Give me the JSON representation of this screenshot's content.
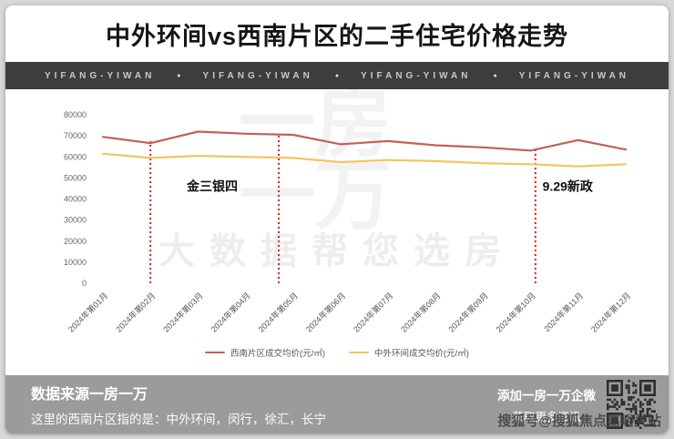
{
  "page": {
    "title": "中外环间vs西南片区的二手住宅价格走势"
  },
  "banner": {
    "items": [
      "YIFANG-YIWAN",
      "YIFANG-YIWAN",
      "YIFANG-YIWAN",
      "YIFANG-YIWAN"
    ],
    "separator": "●"
  },
  "chart_data": {
    "type": "line",
    "title": "中外环间vs西南片区的二手住宅价格走势",
    "categories": [
      "2024年第01月",
      "2024年第02月",
      "2024年第03月",
      "2024年第04月",
      "2024年第05月",
      "2024年第06月",
      "2024年第07月",
      "2024年第08月",
      "2024年第09月",
      "2024年第10月",
      "2024年第11月",
      "2024年第12月"
    ],
    "series": [
      {
        "name": "西南片区成交均价(元/㎡)",
        "color": "#c2605c",
        "values": [
          69500,
          66500,
          72000,
          71000,
          70500,
          66000,
          67500,
          65500,
          64500,
          63000,
          68000,
          63500
        ]
      },
      {
        "name": "中外环间成交均价(元/㎡)",
        "color": "#f2c55f",
        "values": [
          61500,
          59500,
          60500,
          60000,
          59500,
          57500,
          58500,
          58000,
          57000,
          56500,
          55500,
          56500
        ]
      }
    ],
    "ylim": [
      0,
      80000
    ],
    "ytick_step": 10000,
    "grid": false,
    "legend_position": "bottom",
    "vlines": [
      {
        "x": 1.0,
        "top": 67500,
        "color": "#f01414"
      },
      {
        "x": 3.7,
        "top": 71000,
        "color": "#f01414"
      },
      {
        "x": 9.1,
        "top": 64500,
        "color": "#f01414"
      }
    ],
    "annotations": [
      {
        "text": "金三银四",
        "x": 2.3,
        "value": 44000,
        "anchor": "middle"
      },
      {
        "text": "9.29新政",
        "x": 9.25,
        "value": 44000,
        "anchor": "start"
      }
    ]
  },
  "watermark": {
    "logo_line1": "一房",
    "logo_line2": "一万",
    "slogan": "大数据帮您选房"
  },
  "footer": {
    "source": "数据来源一房一万",
    "note": "这里的西南片区指的是：中外环间，闵行，徐汇，长宁",
    "cta_line1": "添加一房一万企微",
    "cta_line2": "获取更多资讯"
  },
  "overlay": {
    "credit": "搜狐号@搜狐焦点嘉峪关站"
  }
}
